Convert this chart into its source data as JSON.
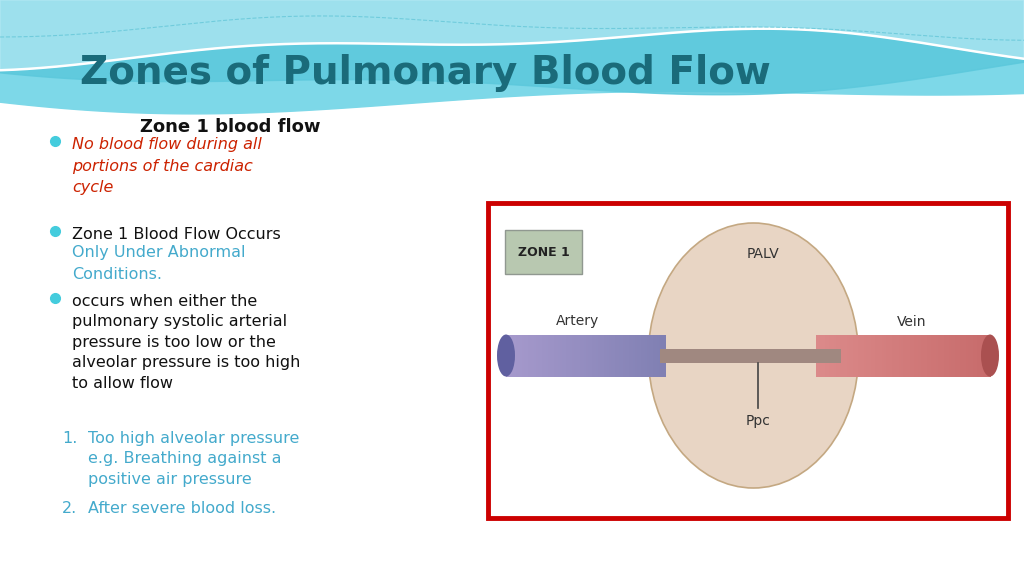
{
  "title": "Zones of Pulmonary Blood Flow",
  "title_color": "#1a6b7a",
  "title_fontsize": 28,
  "bg_color": "#ffffff",
  "subtitle": "Zone 1 blood flow",
  "diagram": {
    "box_color": "#cc0000",
    "alveolus_color": "#e8d5c4",
    "alveolus_border": "#c4a882",
    "artery_blue": "#8080bb",
    "artery_blue_dark": "#6060a0",
    "vein_red": "#cc7777",
    "vein_red_dark": "#aa5555",
    "narrow_color": "#998888",
    "zone_box_color": "#b8c8b0",
    "zone_box_border": "#909890",
    "zone_text": "ZONE 1",
    "palv_text": "PALV",
    "artery_text": "Artery",
    "vein_text": "Vein",
    "ppc_text": "Ppc"
  },
  "bullet_color": "#44ccdd",
  "text_cyan": "#44aacc",
  "text_red": "#cc2200",
  "text_black": "#111111"
}
